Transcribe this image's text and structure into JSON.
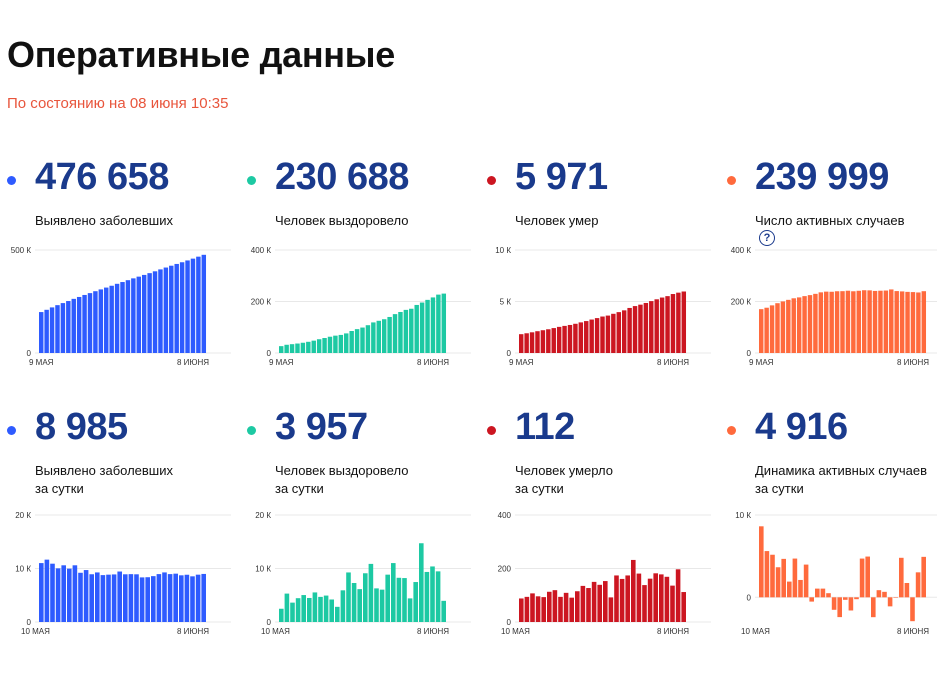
{
  "header": {
    "title": "Оперативные данные",
    "subtitle": "По состоянию на 08 июня 10:35"
  },
  "colors": {
    "blue": "#2e5bff",
    "green": "#1dc9a3",
    "red": "#cc1621",
    "orange": "#ff6a3d"
  },
  "panels": [
    {
      "value": "476 658",
      "label1": "Выявлено заболевших",
      "label2": "",
      "help": "",
      "color": "blue",
      "yticks": [
        "500 К",
        "0"
      ],
      "xticks": [
        "9 МАЯ",
        "8 ИЮНЯ"
      ]
    },
    {
      "value": "230 688",
      "label1": "Человек выздоровело",
      "label2": "",
      "help": "",
      "color": "green",
      "yticks": [
        "400 К",
        "200 К",
        "0"
      ],
      "xticks": [
        "9 МАЯ",
        "8 ИЮНЯ"
      ]
    },
    {
      "value": "5 971",
      "label1": "Человек умер",
      "label2": "",
      "help": "",
      "color": "red",
      "yticks": [
        "10 К",
        "5 К",
        "0"
      ],
      "xticks": [
        "9 МАЯ",
        "8 ИЮНЯ"
      ]
    },
    {
      "value": "239 999",
      "label1": "Число активных случаев",
      "label2": "",
      "help": "?",
      "color": "orange",
      "yticks": [
        "400 К",
        "200 К",
        "0"
      ],
      "xticks": [
        "9 МАЯ",
        "8 ИЮНЯ"
      ]
    },
    {
      "value": "8 985",
      "label1": "Выявлено заболевших",
      "label2": "за сутки",
      "help": "",
      "color": "blue",
      "yticks": [
        "20 К",
        "10 К",
        "0"
      ],
      "xticks": [
        "10 МАЯ",
        "8 ИЮНЯ"
      ]
    },
    {
      "value": "3 957",
      "label1": "Человек выздоровело",
      "label2": "за сутки",
      "help": "",
      "color": "green",
      "yticks": [
        "20 К",
        "10 К",
        "0"
      ],
      "xticks": [
        "10 МАЯ",
        "8 ИЮНЯ"
      ]
    },
    {
      "value": "112",
      "label1": "Человек умерло",
      "label2": "за сутки",
      "help": "",
      "color": "red",
      "yticks": [
        "400",
        "200",
        "0"
      ],
      "xticks": [
        "10 МАЯ",
        "8 ИЮНЯ"
      ]
    },
    {
      "value": "4 916",
      "label1": "Динамика активных случаев",
      "label2": "за сутки",
      "help": "",
      "color": "orange",
      "yticks": [
        "10 К",
        "0"
      ],
      "xticks": [
        "10 МАЯ",
        "8 ИЮНЯ"
      ]
    }
  ],
  "chart_data": [
    {
      "type": "bar",
      "ylim": [
        0,
        500000
      ],
      "x_range": [
        "9 МАЯ",
        "8 ИЮНЯ"
      ],
      "values": [
        198676,
        209688,
        221344,
        232243,
        242271,
        252245,
        262843,
        272043,
        281752,
        290678,
        299941,
        308705,
        317554,
        326448,
        335882,
        344481,
        353427,
        362342,
        370680,
        379051,
        387623,
        396575,
        405843,
        414878,
        423741,
        432277,
        440538,
        449256,
        458102,
        467673,
        476658
      ]
    },
    {
      "type": "bar",
      "ylim": [
        0,
        400000
      ],
      "x_range": [
        "9 МАЯ",
        "8 ИЮНЯ"
      ],
      "values": [
        26608,
        31916,
        34306,
        36736,
        39801,
        43512,
        48003,
        53530,
        58226,
        63166,
        67373,
        70209,
        76130,
        85392,
        92681,
        98825,
        107936,
        118798,
        125082,
        131129,
        139979,
        150993,
        159257,
        167469,
        171883,
        186602,
        195957,
        206340,
        215805,
        226731,
        230688
      ]
    },
    {
      "type": "bar",
      "ylim": [
        0,
        10000
      ],
      "x_range": [
        "9 МАЯ",
        "8 ИЮНЯ"
      ],
      "values": [
        1827,
        1915,
        2009,
        2116,
        2212,
        2305,
        2418,
        2537,
        2631,
        2722,
        2837,
        2972,
        3099,
        3249,
        3388,
        3541,
        3633,
        3807,
        3968,
        4142,
        4374,
        4555,
        4693,
        4855,
        5037,
        5215,
        5384,
        5520,
        5725,
        5859,
        5971
      ]
    },
    {
      "type": "bar",
      "ylim": [
        0,
        400000
      ],
      "x_range": [
        "9 МАЯ",
        "8 ИЮНЯ"
      ],
      "values": [
        170241,
        175857,
        185029,
        193391,
        200258,
        206428,
        212422,
        215976,
        220895,
        224790,
        229731,
        235524,
        238325,
        237807,
        239813,
        240115,
        241858,
        239737,
        241630,
        243780,
        243270,
        241027,
        241893,
        242554,
        246821,
        240460,
        239197,
        237396,
        236572,
        235083,
        239999
      ]
    },
    {
      "type": "bar",
      "ylim": [
        0,
        20000
      ],
      "x_range": [
        "10 МАЯ",
        "8 ИЮНЯ"
      ],
      "values": [
        11012,
        11656,
        10899,
        10028,
        10598,
        9974,
        10598,
        9200,
        9709,
        8926,
        9263,
        8764,
        8849,
        8894,
        9434,
        8915,
        8946,
        8915,
        8338,
        8371,
        8572,
        8952,
        9268,
        8952,
        9035,
        8726,
        8831,
        8536,
        8846,
        8985
      ]
    },
    {
      "type": "bar",
      "ylim": [
        0,
        20000
      ],
      "x_range": [
        "10 МАЯ",
        "8 ИЮНЯ"
      ],
      "values": [
        2476,
        5308,
        3621,
        4450,
        5036,
        4491,
        5527,
        4696,
        4940,
        4207,
        2836,
        5921,
        9262,
        7289,
        6144,
        9111,
        10862,
        6284,
        6047,
        8850,
        11014,
        8264,
        8212,
        4414,
        7469,
        14719,
        9355,
        10383,
        9465,
        3957
      ]
    },
    {
      "type": "bar",
      "ylim": [
        0,
        400
      ],
      "x_range": [
        "10 МАЯ",
        "8 ИЮНЯ"
      ],
      "values": [
        88,
        94,
        107,
        96,
        93,
        113,
        119,
        94,
        109,
        91,
        115,
        135,
        127,
        150,
        139,
        153,
        92,
        174,
        161,
        174,
        232,
        181,
        138,
        162,
        182,
        178,
        169,
        136,
        197,
        112
      ]
    },
    {
      "type": "bar",
      "ylim": [
        -3000,
        10000
      ],
      "x_range": [
        "10 МАЯ",
        "8 ИЮНЯ"
      ],
      "values": [
        8626,
        5616,
        5172,
        3652,
        4670,
        1908,
        4706,
        2108,
        3975,
        -520,
        1055,
        1056,
        500,
        -1518,
        -2406,
        -305,
        -1600,
        -230,
        4708,
        4951,
        -2414,
        866,
        666,
        -1100,
        -50,
        4800,
        1740,
        -2900,
        3033,
        4916
      ]
    }
  ]
}
